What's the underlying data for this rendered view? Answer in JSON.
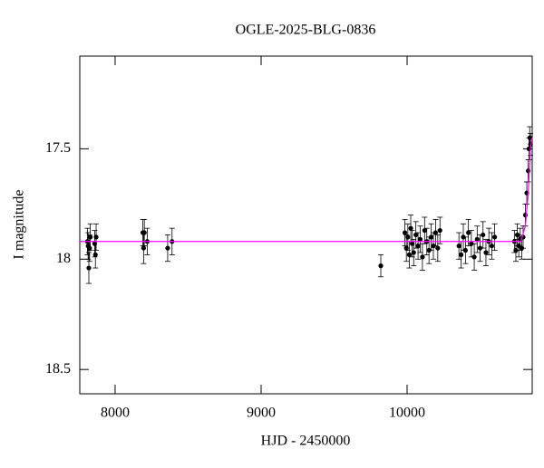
{
  "chart_data": {
    "type": "scatter",
    "title": "OGLE-2025-BLG-0836",
    "x_label": "HJD - 2450000",
    "y_label": "I magnitude",
    "xlim": [
      7758,
      10857
    ],
    "ylim": [
      18.61,
      17.08
    ],
    "xticks": [
      8000,
      9000,
      10000
    ],
    "yticks": [
      17.5,
      18,
      18.5
    ],
    "series": [
      {
        "name": "data",
        "color": "#000000",
        "x": [
          7810,
          7815,
          7820,
          7825,
          7830,
          7860,
          7865,
          7870,
          8190,
          8195,
          8200,
          8220,
          8360,
          8390,
          9820,
          9985,
          9995,
          10005,
          10015,
          10025,
          10035,
          10045,
          10060,
          10075,
          10090,
          10105,
          10120,
          10135,
          10150,
          10165,
          10180,
          10195,
          10210,
          10225,
          10355,
          10370,
          10385,
          10400,
          10420,
          10440,
          10460,
          10480,
          10500,
          10520,
          10540,
          10560,
          10580,
          10600,
          10735,
          10745,
          10755,
          10765,
          10775,
          10785,
          10795,
          10810,
          10820,
          10830,
          10835,
          10840,
          10845
        ],
        "values": [
          17.92,
          17.94,
          18.04,
          17.95,
          17.9,
          17.93,
          17.98,
          17.9,
          17.88,
          17.95,
          17.88,
          17.92,
          17.95,
          17.92,
          18.03,
          17.88,
          17.95,
          17.9,
          17.98,
          17.86,
          17.93,
          17.97,
          17.89,
          17.94,
          17.91,
          17.99,
          17.87,
          17.92,
          17.96,
          17.9,
          17.94,
          17.88,
          17.95,
          17.87,
          17.94,
          17.98,
          17.9,
          17.96,
          17.88,
          17.93,
          17.99,
          17.91,
          17.95,
          17.89,
          17.97,
          17.92,
          17.94,
          17.9,
          17.92,
          17.96,
          17.89,
          17.94,
          17.91,
          17.95,
          17.9,
          17.8,
          17.7,
          17.6,
          17.5,
          17.45,
          17.48
        ],
        "errors": [
          0.06,
          0.06,
          0.07,
          0.06,
          0.06,
          0.06,
          0.06,
          0.06,
          0.06,
          0.07,
          0.06,
          0.06,
          0.06,
          0.06,
          0.05,
          0.06,
          0.06,
          0.06,
          0.06,
          0.06,
          0.06,
          0.06,
          0.06,
          0.06,
          0.06,
          0.06,
          0.06,
          0.06,
          0.06,
          0.06,
          0.06,
          0.06,
          0.06,
          0.06,
          0.06,
          0.06,
          0.06,
          0.06,
          0.06,
          0.06,
          0.06,
          0.06,
          0.06,
          0.06,
          0.06,
          0.06,
          0.06,
          0.06,
          0.05,
          0.05,
          0.05,
          0.05,
          0.05,
          0.05,
          0.05,
          0.05,
          0.05,
          0.05,
          0.05,
          0.05,
          0.05
        ]
      },
      {
        "name": "model",
        "color": "#ff00ff",
        "x": [
          7758,
          10780,
          10810,
          10830,
          10845,
          10857
        ],
        "values": [
          17.92,
          17.92,
          17.85,
          17.7,
          17.5,
          17.45
        ]
      }
    ]
  }
}
